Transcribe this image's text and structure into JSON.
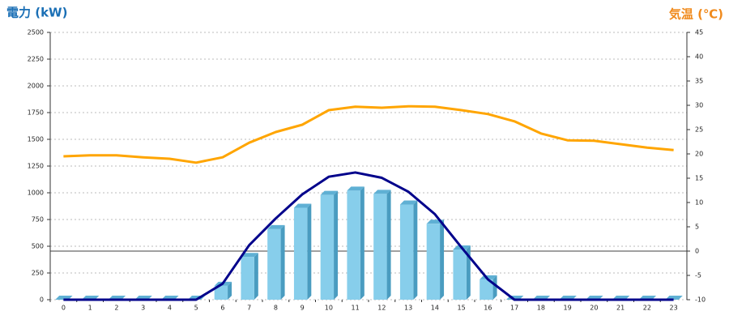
{
  "chart_data": {
    "type": "combo",
    "y_label": "電力 (kW)",
    "y2_label": "気温 (℃)",
    "categories": [
      "0",
      "1",
      "2",
      "3",
      "4",
      "5",
      "6",
      "7",
      "8",
      "9",
      "10",
      "11",
      "12",
      "13",
      "14",
      "15",
      "16",
      "17",
      "18",
      "19",
      "20",
      "21",
      "22",
      "23"
    ],
    "ylim": [
      0,
      2500
    ],
    "yticks": [
      0,
      250,
      500,
      750,
      1000,
      1250,
      1500,
      1750,
      2000,
      2250,
      2500
    ],
    "y2lim": [
      -10,
      45
    ],
    "y2ticks": [
      -10,
      -5,
      0,
      5,
      10,
      15,
      20,
      25,
      30,
      35,
      40,
      45
    ],
    "grid": true,
    "series": [
      {
        "type": "bar",
        "color": "#87ceeb",
        "values": [
          0,
          0,
          0,
          0,
          0,
          0,
          130,
          400,
          660,
          860,
          980,
          1020,
          990,
          890,
          710,
          470,
          190,
          0,
          0,
          0,
          0,
          0,
          0,
          0
        ]
      },
      {
        "type": "line",
        "color": "#00008b",
        "values": [
          0,
          0,
          0,
          0,
          0,
          0,
          150,
          510,
          760,
          985,
          1150,
          1190,
          1140,
          1010,
          800,
          490,
          190,
          0,
          0,
          0,
          0,
          0,
          0,
          0
        ]
      },
      {
        "type": "line",
        "color": "#ffa500",
        "axis": "y2",
        "values": [
          19.5,
          19.7,
          19.7,
          19.3,
          19.0,
          18.2,
          19.3,
          22.3,
          24.5,
          26.0,
          29.0,
          29.7,
          29.5,
          29.8,
          29.7,
          29.0,
          28.2,
          26.7,
          24.2,
          22.8,
          22.7,
          22.0,
          21.3,
          20.8
        ]
      }
    ]
  }
}
